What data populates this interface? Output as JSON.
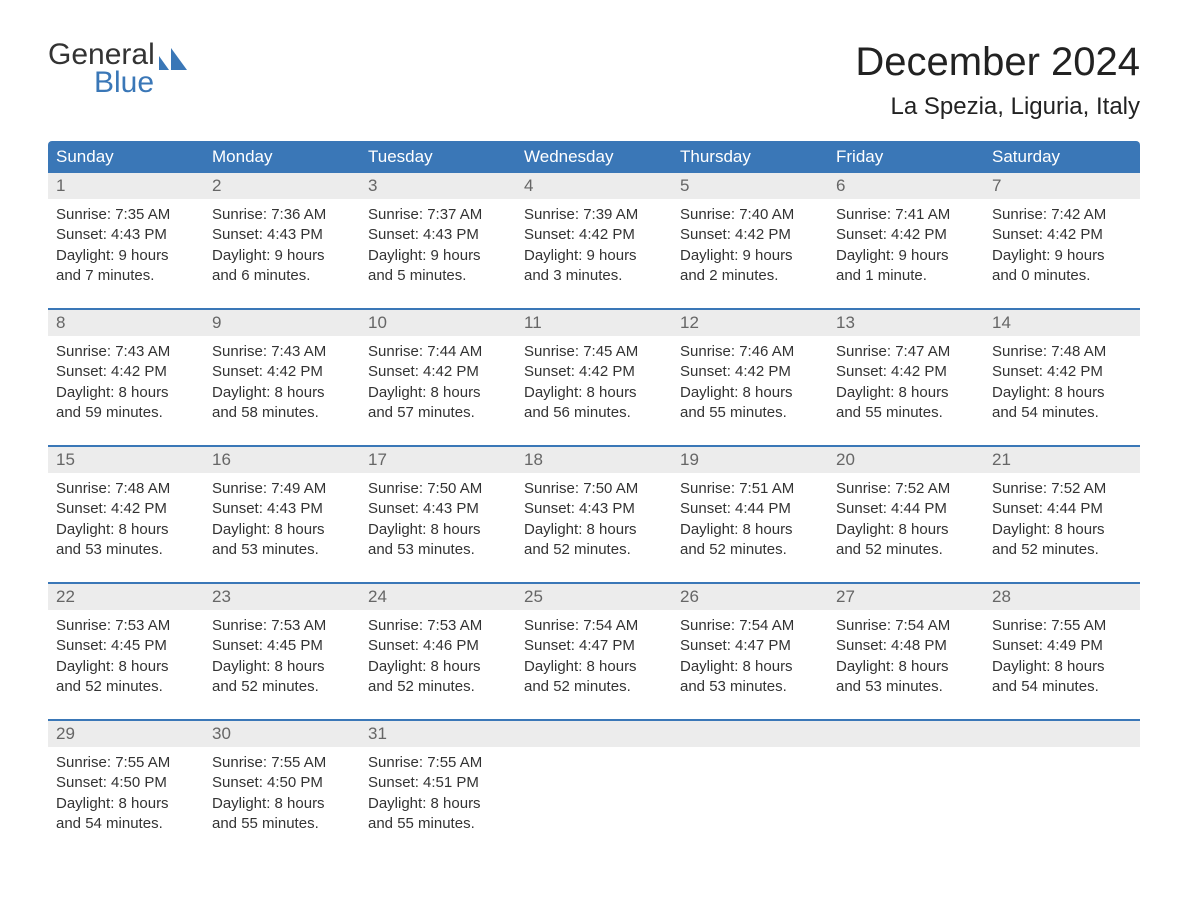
{
  "logo": {
    "word1": "General",
    "word2": "Blue",
    "icon_color": "#3a77b7"
  },
  "header": {
    "month_title": "December 2024",
    "location": "La Spezia, Liguria, Italy"
  },
  "colors": {
    "header_bg": "#3a77b7",
    "header_fg": "#ffffff",
    "daynum_bg": "#ececec",
    "daynum_fg": "#666666",
    "text": "#333333",
    "page_bg": "#ffffff",
    "row_border": "#3a77b7"
  },
  "weekdays": [
    "Sunday",
    "Monday",
    "Tuesday",
    "Wednesday",
    "Thursday",
    "Friday",
    "Saturday"
  ],
  "weeks": [
    [
      {
        "num": "1",
        "sunrise": "Sunrise: 7:35 AM",
        "sunset": "Sunset: 4:43 PM",
        "daylight": "Daylight: 9 hours\nand 7 minutes."
      },
      {
        "num": "2",
        "sunrise": "Sunrise: 7:36 AM",
        "sunset": "Sunset: 4:43 PM",
        "daylight": "Daylight: 9 hours\nand 6 minutes."
      },
      {
        "num": "3",
        "sunrise": "Sunrise: 7:37 AM",
        "sunset": "Sunset: 4:43 PM",
        "daylight": "Daylight: 9 hours\nand 5 minutes."
      },
      {
        "num": "4",
        "sunrise": "Sunrise: 7:39 AM",
        "sunset": "Sunset: 4:42 PM",
        "daylight": "Daylight: 9 hours\nand 3 minutes."
      },
      {
        "num": "5",
        "sunrise": "Sunrise: 7:40 AM",
        "sunset": "Sunset: 4:42 PM",
        "daylight": "Daylight: 9 hours\nand 2 minutes."
      },
      {
        "num": "6",
        "sunrise": "Sunrise: 7:41 AM",
        "sunset": "Sunset: 4:42 PM",
        "daylight": "Daylight: 9 hours\nand 1 minute."
      },
      {
        "num": "7",
        "sunrise": "Sunrise: 7:42 AM",
        "sunset": "Sunset: 4:42 PM",
        "daylight": "Daylight: 9 hours\nand 0 minutes."
      }
    ],
    [
      {
        "num": "8",
        "sunrise": "Sunrise: 7:43 AM",
        "sunset": "Sunset: 4:42 PM",
        "daylight": "Daylight: 8 hours\nand 59 minutes."
      },
      {
        "num": "9",
        "sunrise": "Sunrise: 7:43 AM",
        "sunset": "Sunset: 4:42 PM",
        "daylight": "Daylight: 8 hours\nand 58 minutes."
      },
      {
        "num": "10",
        "sunrise": "Sunrise: 7:44 AM",
        "sunset": "Sunset: 4:42 PM",
        "daylight": "Daylight: 8 hours\nand 57 minutes."
      },
      {
        "num": "11",
        "sunrise": "Sunrise: 7:45 AM",
        "sunset": "Sunset: 4:42 PM",
        "daylight": "Daylight: 8 hours\nand 56 minutes."
      },
      {
        "num": "12",
        "sunrise": "Sunrise: 7:46 AM",
        "sunset": "Sunset: 4:42 PM",
        "daylight": "Daylight: 8 hours\nand 55 minutes."
      },
      {
        "num": "13",
        "sunrise": "Sunrise: 7:47 AM",
        "sunset": "Sunset: 4:42 PM",
        "daylight": "Daylight: 8 hours\nand 55 minutes."
      },
      {
        "num": "14",
        "sunrise": "Sunrise: 7:48 AM",
        "sunset": "Sunset: 4:42 PM",
        "daylight": "Daylight: 8 hours\nand 54 minutes."
      }
    ],
    [
      {
        "num": "15",
        "sunrise": "Sunrise: 7:48 AM",
        "sunset": "Sunset: 4:42 PM",
        "daylight": "Daylight: 8 hours\nand 53 minutes."
      },
      {
        "num": "16",
        "sunrise": "Sunrise: 7:49 AM",
        "sunset": "Sunset: 4:43 PM",
        "daylight": "Daylight: 8 hours\nand 53 minutes."
      },
      {
        "num": "17",
        "sunrise": "Sunrise: 7:50 AM",
        "sunset": "Sunset: 4:43 PM",
        "daylight": "Daylight: 8 hours\nand 53 minutes."
      },
      {
        "num": "18",
        "sunrise": "Sunrise: 7:50 AM",
        "sunset": "Sunset: 4:43 PM",
        "daylight": "Daylight: 8 hours\nand 52 minutes."
      },
      {
        "num": "19",
        "sunrise": "Sunrise: 7:51 AM",
        "sunset": "Sunset: 4:44 PM",
        "daylight": "Daylight: 8 hours\nand 52 minutes."
      },
      {
        "num": "20",
        "sunrise": "Sunrise: 7:52 AM",
        "sunset": "Sunset: 4:44 PM",
        "daylight": "Daylight: 8 hours\nand 52 minutes."
      },
      {
        "num": "21",
        "sunrise": "Sunrise: 7:52 AM",
        "sunset": "Sunset: 4:44 PM",
        "daylight": "Daylight: 8 hours\nand 52 minutes."
      }
    ],
    [
      {
        "num": "22",
        "sunrise": "Sunrise: 7:53 AM",
        "sunset": "Sunset: 4:45 PM",
        "daylight": "Daylight: 8 hours\nand 52 minutes."
      },
      {
        "num": "23",
        "sunrise": "Sunrise: 7:53 AM",
        "sunset": "Sunset: 4:45 PM",
        "daylight": "Daylight: 8 hours\nand 52 minutes."
      },
      {
        "num": "24",
        "sunrise": "Sunrise: 7:53 AM",
        "sunset": "Sunset: 4:46 PM",
        "daylight": "Daylight: 8 hours\nand 52 minutes."
      },
      {
        "num": "25",
        "sunrise": "Sunrise: 7:54 AM",
        "sunset": "Sunset: 4:47 PM",
        "daylight": "Daylight: 8 hours\nand 52 minutes."
      },
      {
        "num": "26",
        "sunrise": "Sunrise: 7:54 AM",
        "sunset": "Sunset: 4:47 PM",
        "daylight": "Daylight: 8 hours\nand 53 minutes."
      },
      {
        "num": "27",
        "sunrise": "Sunrise: 7:54 AM",
        "sunset": "Sunset: 4:48 PM",
        "daylight": "Daylight: 8 hours\nand 53 minutes."
      },
      {
        "num": "28",
        "sunrise": "Sunrise: 7:55 AM",
        "sunset": "Sunset: 4:49 PM",
        "daylight": "Daylight: 8 hours\nand 54 minutes."
      }
    ],
    [
      {
        "num": "29",
        "sunrise": "Sunrise: 7:55 AM",
        "sunset": "Sunset: 4:50 PM",
        "daylight": "Daylight: 8 hours\nand 54 minutes."
      },
      {
        "num": "30",
        "sunrise": "Sunrise: 7:55 AM",
        "sunset": "Sunset: 4:50 PM",
        "daylight": "Daylight: 8 hours\nand 55 minutes."
      },
      {
        "num": "31",
        "sunrise": "Sunrise: 7:55 AM",
        "sunset": "Sunset: 4:51 PM",
        "daylight": "Daylight: 8 hours\nand 55 minutes."
      },
      null,
      null,
      null,
      null
    ]
  ]
}
